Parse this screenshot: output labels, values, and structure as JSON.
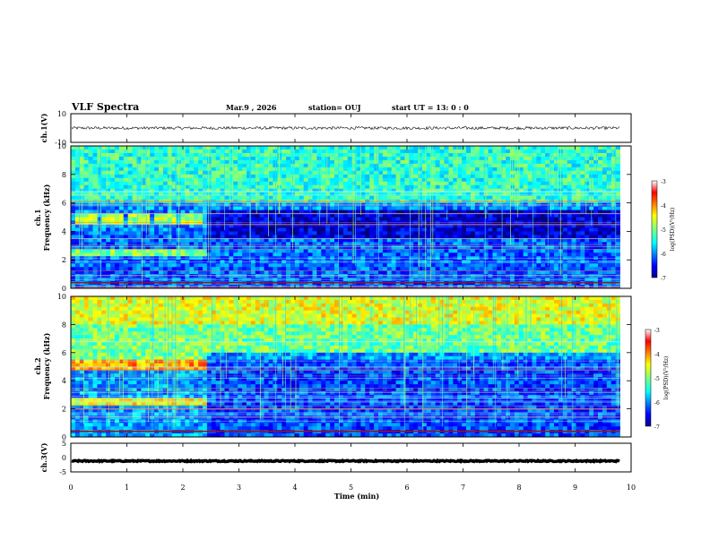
{
  "header": {
    "title": "VLF Spectra",
    "date": "Mar.9 , 2026",
    "station": "station= OUJ",
    "start": "start UT = 13: 0 : 0"
  },
  "chart_data": [
    {
      "panel": "ch1-waveform",
      "type": "line",
      "ylabel": "ch.1(V)",
      "ylim": [
        -10,
        10
      ],
      "yticks": [
        "10",
        "-10"
      ],
      "baseline": 0,
      "noise_amplitude": 1
    },
    {
      "panel": "ch1-spectrogram",
      "type": "heatmap",
      "ylabel_top": "ch.1",
      "ylabel": "Frequency (kHz)",
      "ylim": [
        0,
        10
      ],
      "yticks": [
        "0",
        "2",
        "4",
        "6",
        "8",
        "10"
      ],
      "colorbar": {
        "label": "log(PSD)(V²/Hz)",
        "min": -7,
        "max": -3,
        "ticks": [
          "-3",
          "-4",
          "-5",
          "-6",
          "-7"
        ]
      }
    },
    {
      "panel": "ch2-spectrogram",
      "type": "heatmap",
      "ylabel_top": "ch.2",
      "ylabel": "Frequency (kHz)",
      "ylim": [
        0,
        10
      ],
      "yticks": [
        "0",
        "2",
        "4",
        "6",
        "8",
        "10"
      ],
      "colorbar": {
        "label": "log(PSD)(V²/Hz)",
        "min": -7,
        "max": -3,
        "ticks": [
          "-3",
          "-4",
          "-5",
          "-6",
          "-7"
        ]
      }
    },
    {
      "panel": "ch3-waveform",
      "type": "line",
      "ylabel": "ch.3(V)",
      "ylim": [
        -5,
        5
      ],
      "yticks": [
        "5",
        "0",
        "-5"
      ],
      "baseline": -1.2,
      "noise_amplitude": 0.2
    }
  ],
  "xaxis": {
    "label": "Time (min)",
    "xlim": [
      0,
      10
    ],
    "ticks": [
      "0",
      "1",
      "2",
      "3",
      "4",
      "5",
      "6",
      "7",
      "8",
      "9",
      "10"
    ],
    "data_end": 9.8
  }
}
